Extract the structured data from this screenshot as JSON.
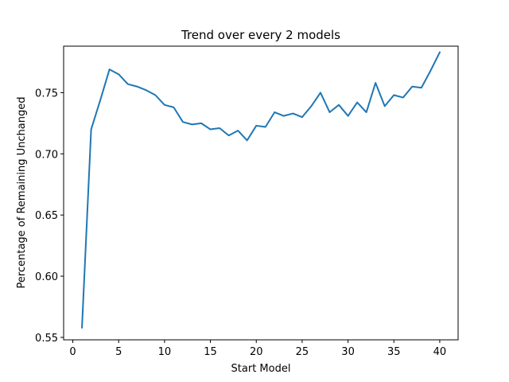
{
  "chart_data": {
    "type": "line",
    "title": "Trend over every 2 models",
    "xlabel": "Start Model",
    "ylabel": "Percentage of Remaining Unchanged",
    "xlim": [
      -1,
      42
    ],
    "ylim": [
      0.548,
      0.788
    ],
    "xticks": [
      0,
      5,
      10,
      15,
      20,
      25,
      30,
      35,
      40
    ],
    "xtick_labels": [
      "0",
      "5",
      "10",
      "15",
      "20",
      "25",
      "30",
      "35",
      "40"
    ],
    "yticks": [
      0.55,
      0.6,
      0.65,
      0.7,
      0.75
    ],
    "ytick_labels": [
      "0.55",
      "0.60",
      "0.65",
      "0.70",
      "0.75"
    ],
    "grid": false,
    "color": "#1f77b4",
    "series": [
      {
        "x": [
          1,
          2,
          3,
          4,
          5,
          6,
          7,
          8,
          9,
          10,
          11,
          12,
          13,
          14,
          15,
          16,
          17,
          18,
          19,
          20,
          21,
          22,
          23,
          24,
          25,
          26,
          27,
          28,
          29,
          30,
          31,
          32,
          33,
          34,
          35,
          36,
          37,
          38,
          39,
          40
        ],
        "values": [
          0.558,
          0.72,
          0.744,
          0.769,
          0.765,
          0.757,
          0.755,
          0.752,
          0.748,
          0.74,
          0.738,
          0.726,
          0.724,
          0.725,
          0.72,
          0.721,
          0.715,
          0.719,
          0.711,
          0.723,
          0.722,
          0.734,
          0.731,
          0.733,
          0.73,
          0.739,
          0.75,
          0.734,
          0.74,
          0.731,
          0.742,
          0.734,
          0.758,
          0.739,
          0.748,
          0.746,
          0.755,
          0.754,
          0.768,
          0.783
        ]
      }
    ]
  }
}
